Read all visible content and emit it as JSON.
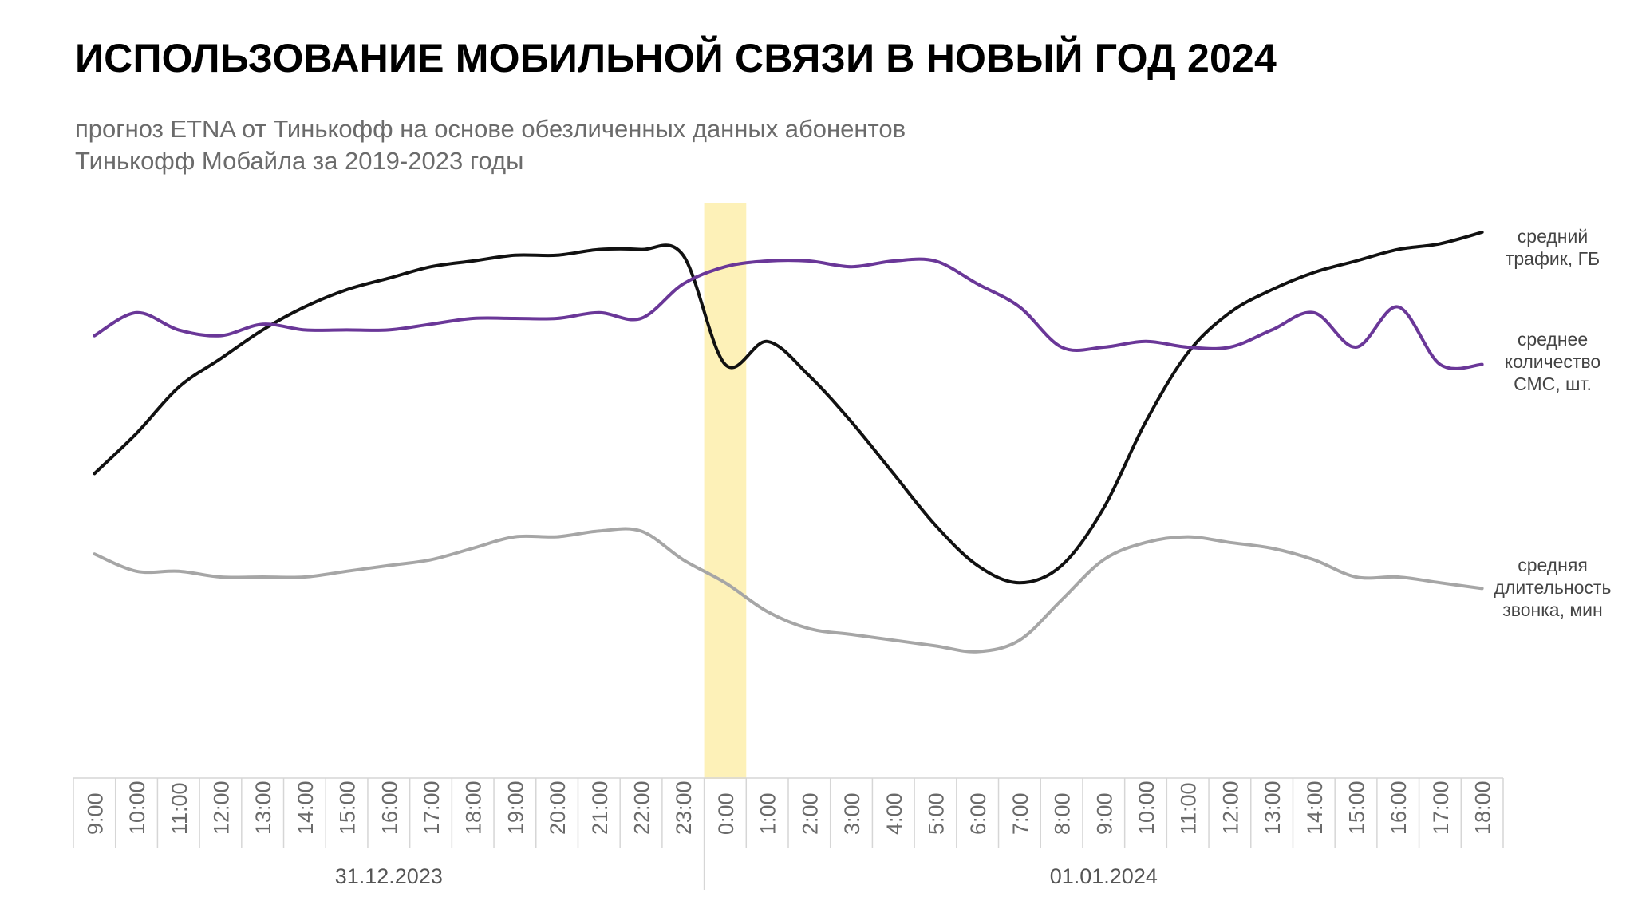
{
  "title": "ИСПОЛЬЗОВАНИЕ МОБИЛЬНОЙ СВЯЗИ В НОВЫЙ ГОД 2024",
  "subtitle": [
    "прогноз ETNA от Тинькофф на основе обезличенных данных абонентов",
    "Тинькофф Мобайла за 2019-2023 годы"
  ],
  "chart_data": {
    "type": "line",
    "highlight_category": "0:00",
    "categories": [
      "9:00",
      "10:00",
      "11:00",
      "12:00",
      "13:00",
      "14:00",
      "15:00",
      "16:00",
      "17:00",
      "18:00",
      "19:00",
      "20:00",
      "21:00",
      "22:00",
      "23:00",
      "0:00",
      "1:00",
      "2:00",
      "3:00",
      "4:00",
      "5:00",
      "6:00",
      "7:00",
      "8:00",
      "9:00",
      "10:00",
      "11:00",
      "12:00",
      "13:00",
      "14:00",
      "15:00",
      "16:00",
      "17:00",
      "18:00"
    ],
    "dates": [
      {
        "label": "31.12.2023",
        "from_index": 0,
        "to_index": 14
      },
      {
        "label": "01.01.2024",
        "from_index": 15,
        "to_index": 33
      }
    ],
    "y_axis": "relative index (no scale shown)",
    "ylim": [
      0,
      100
    ],
    "series": [
      {
        "name": "средний трафик, ГБ",
        "label_lines": [
          "средний",
          "трафик, ГБ"
        ],
        "color": "#111111",
        "values": [
          53,
          60,
          68,
          73,
          78,
          82,
          85,
          87,
          89,
          90,
          91,
          91,
          92,
          92,
          91,
          72,
          76,
          70,
          62,
          53,
          44,
          37,
          34,
          37,
          47,
          62,
          74,
          81,
          85,
          88,
          90,
          92,
          93,
          95
        ]
      },
      {
        "name": "среднее количество СМС, шт.",
        "label_lines": [
          "среднее",
          "количество",
          "СМС, шт."
        ],
        "color": "#6a3798",
        "values": [
          77,
          81,
          78,
          77,
          79,
          78,
          78,
          78,
          79,
          80,
          80,
          80,
          81,
          80,
          86,
          89,
          90,
          90,
          89,
          90,
          90,
          86,
          82,
          75,
          75,
          76,
          75,
          75,
          78,
          81,
          75,
          82,
          72,
          72
        ]
      },
      {
        "name": "средняя длительность звонка, мин",
        "label_lines": [
          "средняя",
          "длительность",
          "звонка, мин"
        ],
        "color": "#a6a6a6",
        "values": [
          39,
          36,
          36,
          35,
          35,
          35,
          36,
          37,
          38,
          40,
          42,
          42,
          43,
          43,
          38,
          34,
          29,
          26,
          25,
          24,
          23,
          22,
          24,
          31,
          38,
          41,
          42,
          41,
          40,
          38,
          35,
          35,
          34,
          33
        ]
      }
    ]
  }
}
